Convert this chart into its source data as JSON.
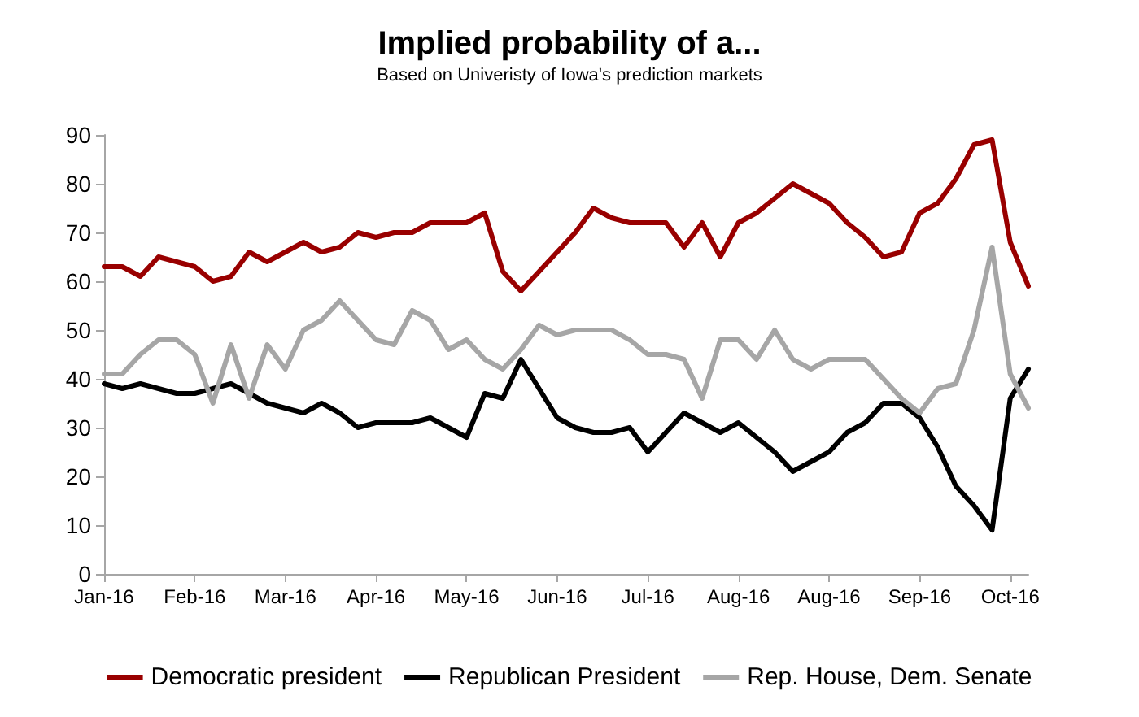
{
  "chart_data": {
    "type": "line",
    "title": "Implied probability of a...",
    "subtitle": "Based on Univeristy of Iowa's prediction markets",
    "categories": [
      "Jan-16",
      null,
      null,
      null,
      null,
      "Feb-16",
      null,
      null,
      null,
      null,
      "Mar-16",
      null,
      null,
      null,
      null,
      "Apr-16",
      null,
      null,
      null,
      null,
      "May-16",
      null,
      null,
      null,
      null,
      "Jun-16",
      null,
      null,
      null,
      null,
      "Jul-16",
      null,
      null,
      null,
      null,
      "Aug-16",
      null,
      null,
      null,
      null,
      "Aug-16",
      null,
      null,
      null,
      null,
      "Sep-16",
      null,
      null,
      null,
      null,
      "Oct-16",
      null
    ],
    "ylim": [
      0,
      90
    ],
    "yticks": [
      0,
      10,
      20,
      30,
      40,
      50,
      60,
      70,
      80,
      90
    ],
    "grid": false,
    "legend": "bottom",
    "marker": "none",
    "line_style": "solid",
    "series": [
      {
        "name": "Democratic president",
        "color": "#990000",
        "values": [
          63,
          63,
          61,
          65,
          64,
          63,
          60,
          61,
          66,
          64,
          66,
          68,
          66,
          67,
          70,
          69,
          70,
          70,
          72,
          72,
          72,
          74,
          62,
          58,
          62,
          66,
          70,
          75,
          73,
          72,
          72,
          72,
          67,
          72,
          65,
          72,
          74,
          77,
          80,
          78,
          76,
          72,
          69,
          65,
          66,
          74,
          76,
          81,
          88,
          89,
          68,
          59
        ]
      },
      {
        "name": "Republican President",
        "color": "#000000",
        "values": [
          39,
          38,
          39,
          38,
          37,
          37,
          38,
          39,
          37,
          35,
          34,
          33,
          35,
          33,
          30,
          31,
          31,
          31,
          32,
          30,
          28,
          37,
          36,
          44,
          38,
          32,
          30,
          29,
          29,
          30,
          25,
          29,
          33,
          31,
          29,
          31,
          28,
          25,
          21,
          23,
          25,
          29,
          31,
          35,
          35,
          32,
          26,
          18,
          14,
          9,
          36,
          42
        ]
      },
      {
        "name": "Rep. House, Dem. Senate",
        "color": "#a6a6a6",
        "values": [
          41,
          41,
          45,
          48,
          48,
          45,
          35,
          47,
          36,
          47,
          42,
          50,
          52,
          56,
          52,
          48,
          47,
          54,
          52,
          46,
          48,
          44,
          42,
          46,
          51,
          49,
          50,
          50,
          50,
          48,
          45,
          45,
          44,
          36,
          48,
          48,
          44,
          50,
          44,
          42,
          44,
          44,
          44,
          40,
          36,
          33,
          38,
          39,
          50,
          67,
          41,
          34
        ]
      }
    ]
  }
}
